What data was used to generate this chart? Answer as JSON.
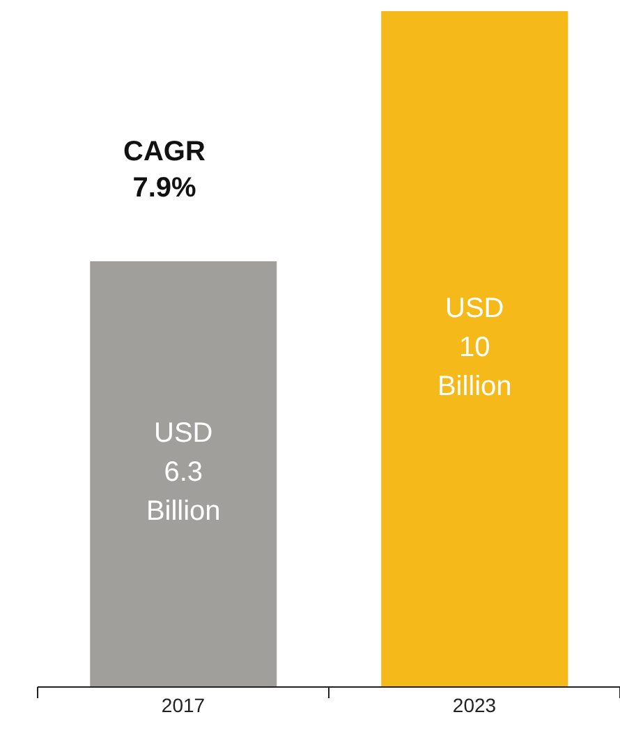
{
  "chart_data": {
    "type": "bar",
    "categories": [
      "2017",
      "2023"
    ],
    "values": [
      6.3,
      10
    ],
    "colors": [
      "#a09f9c",
      "#f6b91a"
    ],
    "value_labels": [
      "USD 6.3 Billion",
      "USD 10 Billion"
    ],
    "annotations": [
      "CAGR 7.9%"
    ]
  }
}
